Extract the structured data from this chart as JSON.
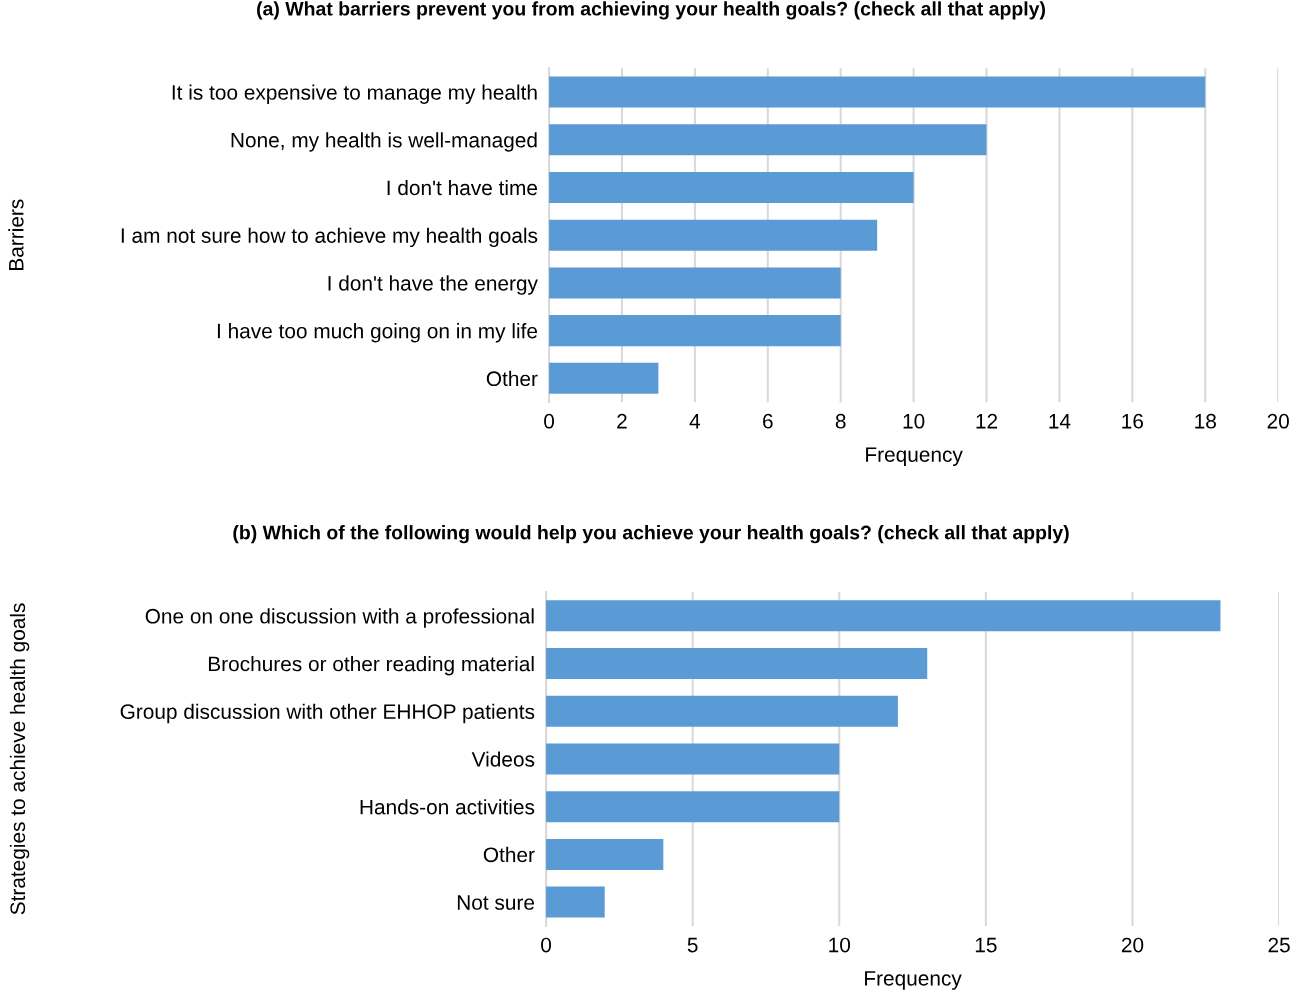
{
  "chart_data": [
    {
      "type": "bar",
      "orientation": "horizontal",
      "title": "(a) What barriers prevent you from achieving your health goals? (check all that apply)",
      "xlabel": "Frequency",
      "ylabel": "Barriers",
      "categories": [
        "It is too expensive to manage my health",
        "None, my health is well-managed",
        "I don't have time",
        "I am not sure how to achieve my health goals",
        "I don't have the energy",
        "I have too much going on in my life",
        "Other"
      ],
      "values": [
        18,
        12,
        10,
        9,
        8,
        8,
        3
      ],
      "color": "#5b9bd5",
      "xlim": [
        0,
        20
      ],
      "xticks": [
        0,
        2,
        4,
        6,
        8,
        10,
        12,
        14,
        16,
        18,
        20
      ],
      "grid": "x",
      "legend": false
    },
    {
      "type": "bar",
      "orientation": "horizontal",
      "title": "(b) Which of the following would help you achieve your health goals? (check all that apply)",
      "xlabel": "Frequency",
      "ylabel": "Strategies to achieve health goals",
      "categories": [
        "One on one discussion with a professional",
        "Brochures or other reading material",
        "Group discussion with other EHHOP patients",
        "Videos",
        "Hands-on activities",
        "Other",
        "Not sure"
      ],
      "values": [
        23,
        13,
        12,
        10,
        10,
        4,
        2
      ],
      "color": "#5b9bd5",
      "xlim": [
        0,
        25
      ],
      "xticks": [
        0,
        5,
        10,
        15,
        20,
        25
      ],
      "grid": "x",
      "legend": false
    }
  ]
}
